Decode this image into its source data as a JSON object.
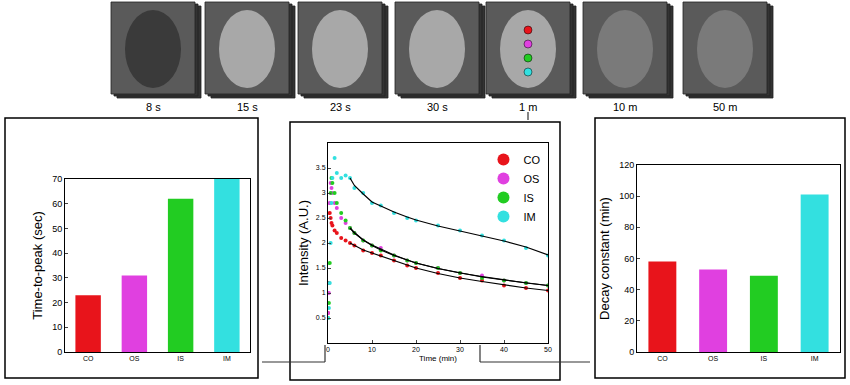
{
  "chart_data": [
    {
      "type": "bar",
      "y_label": "Time-to-peak (sec)",
      "categories": [
        "CO",
        "OS",
        "IS",
        "IM"
      ],
      "values": [
        23,
        31,
        62,
        70
      ],
      "colors": [
        "#e8141b",
        "#e040e0",
        "#22cc22",
        "#33e0e0"
      ],
      "ylim": [
        0,
        70
      ],
      "yticks": [
        0,
        10,
        20,
        30,
        40,
        50,
        60,
        70
      ]
    },
    {
      "type": "scatter",
      "x_label": "Time (min)",
      "y_label": "Intensity (A.U.)",
      "x": [
        0,
        0.2,
        0.4,
        0.6,
        0.8,
        1,
        1.5,
        2,
        3,
        4,
        5,
        6,
        8,
        10,
        12,
        15,
        18,
        20,
        25,
        30,
        35,
        40,
        45,
        50
      ],
      "series": [
        {
          "name": "CO",
          "color": "#e8141b",
          "values": [
            0.6,
            1.2,
            2.6,
            2.5,
            2.4,
            2.35,
            2.25,
            2.2,
            2.1,
            2.05,
            2.0,
            1.95,
            1.85,
            1.8,
            1.75,
            1.65,
            1.55,
            1.5,
            1.4,
            1.3,
            1.25,
            1.15,
            1.1,
            1.05
          ],
          "fit": [
            null,
            null,
            null,
            null,
            null,
            null,
            null,
            null,
            null,
            null,
            2.0,
            1.95,
            1.86,
            1.8,
            1.74,
            1.65,
            1.56,
            1.5,
            1.39,
            1.3,
            1.23,
            1.16,
            1.1,
            1.05
          ]
        },
        {
          "name": "OS",
          "color": "#e040e0",
          "values": [
            0.6,
            1.0,
            2.8,
            3.2,
            3.1,
            3.0,
            2.8,
            2.7,
            2.5,
            2.4,
            2.3,
            2.2,
            2.05,
            1.95,
            1.9,
            1.75,
            1.65,
            1.6,
            1.5,
            1.4,
            1.35,
            1.25,
            1.2,
            1.15
          ],
          "fit": [
            null,
            null,
            null,
            null,
            null,
            null,
            null,
            null,
            null,
            null,
            2.3,
            2.2,
            2.06,
            1.96,
            1.88,
            1.76,
            1.66,
            1.6,
            1.49,
            1.4,
            1.33,
            1.26,
            1.2,
            1.15
          ]
        },
        {
          "name": "IS",
          "color": "#22cc22",
          "values": [
            0.5,
            0.8,
            1.6,
            3.0,
            3.3,
            3.2,
            3.0,
            2.8,
            2.6,
            2.45,
            2.3,
            2.2,
            2.05,
            1.95,
            1.85,
            1.75,
            1.65,
            1.6,
            1.5,
            1.4,
            1.3,
            1.25,
            1.2,
            1.15
          ],
          "fit": [
            null,
            null,
            null,
            null,
            null,
            null,
            null,
            null,
            null,
            null,
            2.3,
            2.21,
            2.06,
            1.95,
            1.86,
            1.75,
            1.66,
            1.6,
            1.49,
            1.4,
            1.32,
            1.26,
            1.2,
            1.15
          ]
        },
        {
          "name": "IM",
          "color": "#33e0e0",
          "values": [
            0.5,
            0.7,
            1.2,
            2.0,
            2.8,
            3.3,
            3.7,
            3.4,
            3.3,
            3.35,
            3.3,
            3.1,
            3.0,
            2.8,
            2.75,
            2.6,
            2.5,
            2.45,
            2.35,
            2.25,
            2.15,
            2.05,
            1.9,
            1.75
          ],
          "fit": [
            null,
            null,
            null,
            null,
            null,
            null,
            null,
            null,
            null,
            null,
            3.3,
            3.15,
            2.98,
            2.82,
            2.74,
            2.62,
            2.52,
            2.46,
            2.34,
            2.24,
            2.14,
            2.04,
            1.92,
            1.76
          ]
        }
      ],
      "xlim": [
        0,
        50
      ],
      "xticks": [
        0,
        10,
        20,
        30,
        40,
        50
      ],
      "ylim": [
        0,
        4
      ],
      "yticks": [
        0.5,
        1,
        1.5,
        2,
        2.5,
        3,
        3.5
      ],
      "legend": "top right",
      "marker": "circle"
    },
    {
      "type": "bar",
      "y_label": "Decay constant (min)",
      "categories": [
        "CO",
        "OS",
        "IS",
        "IM"
      ],
      "values": [
        58,
        53,
        49,
        101
      ],
      "colors": [
        "#e8141b",
        "#e040e0",
        "#22cc22",
        "#33e0e0"
      ],
      "ylim": [
        0,
        120
      ],
      "yticks": [
        0,
        20,
        40,
        60,
        80,
        100,
        120
      ]
    }
  ],
  "frames": [
    "8 s",
    "15 s",
    "23 s",
    "30 s",
    "1 m",
    "10 m",
    "50 m"
  ]
}
